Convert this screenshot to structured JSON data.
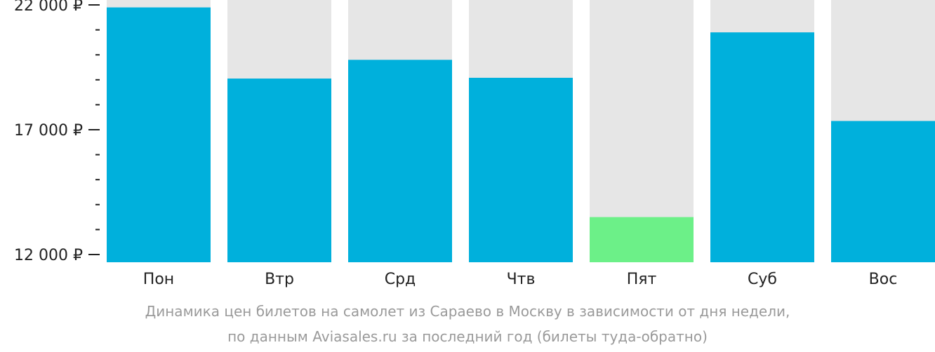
{
  "chart_data": {
    "type": "bar",
    "categories": [
      "Пон",
      "Втр",
      "Срд",
      "Чтв",
      "Пят",
      "Суб",
      "Вос"
    ],
    "values": [
      21900,
      19050,
      19800,
      19080,
      13500,
      20900,
      17350
    ],
    "ylim": [
      12000,
      22000
    ],
    "y_tick_labels": [
      "22 000 ₽",
      "17 000 ₽",
      "12 000 ₽"
    ],
    "y_tick_values": [
      22000,
      17000,
      12000
    ],
    "minor_tick_step": 1000,
    "highlight_index": 4,
    "colors": {
      "bar": "#00b0dc",
      "highlight": "#6cf088",
      "track": "#e6e6e6",
      "axis": "#222222"
    }
  },
  "caption": {
    "line1": "Динамика цен билетов на самолет из Сараево в Москву в зависимости от дня недели,",
    "line2": "по данным Aviasales.ru за последний год (билеты туда-обратно)"
  }
}
